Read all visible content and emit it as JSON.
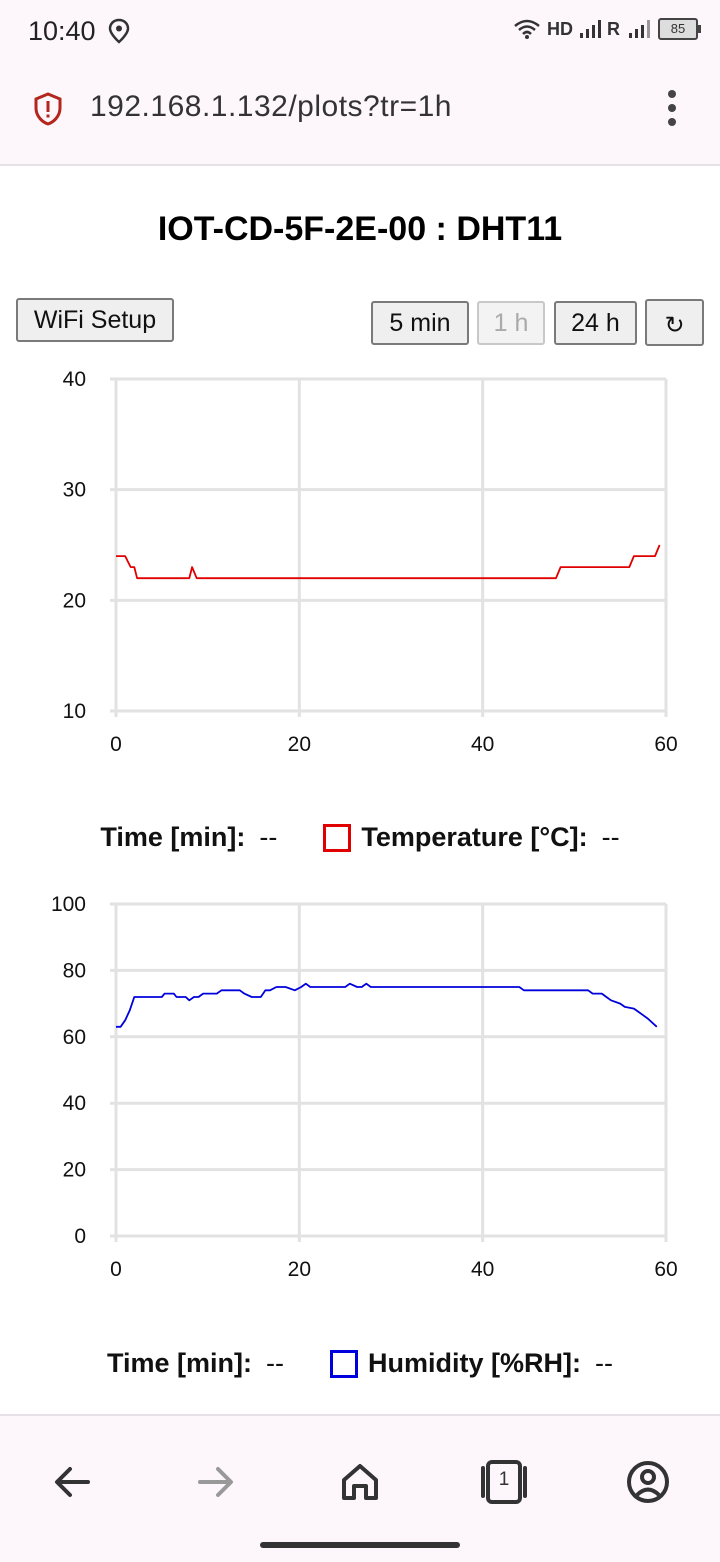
{
  "status_bar": {
    "time": "10:40",
    "network": "HD",
    "roaming": "R",
    "battery": "85"
  },
  "browser": {
    "url": "192.168.1.132/plots?tr=1h",
    "tab_count": "1"
  },
  "page": {
    "title": "IOT-CD-5F-2E-00 : DHT11",
    "wifi_button": "WiFi Setup",
    "range_buttons": [
      {
        "label": "5 min",
        "active": true
      },
      {
        "label": "1 h",
        "active": false
      },
      {
        "label": "24 h",
        "active": true
      }
    ],
    "refresh_glyph": "↻"
  },
  "legends": {
    "temperature": {
      "time_label": "Time [min]:",
      "time_value": "--",
      "series_label": "Temperature [°C]:",
      "series_value": "--",
      "color": "#e00000"
    },
    "humidity": {
      "time_label": "Time [min]:",
      "time_value": "--",
      "series_label": "Humidity [%RH]:",
      "series_value": "--",
      "color": "#0000dd"
    }
  },
  "chart_data": [
    {
      "type": "line",
      "x_ticks": [
        "0",
        "20",
        "40",
        "60"
      ],
      "y_ticks": [
        "10",
        "20",
        "30",
        "40"
      ],
      "xlim": [
        0,
        60
      ],
      "ylim": [
        10,
        40
      ],
      "grid": true,
      "series": [
        {
          "name": "Temperature [°C]",
          "color": "#e00000",
          "x": [
            0,
            1,
            1.3,
            1.6,
            2,
            2.3,
            8,
            8.3,
            8.8,
            9.3,
            48,
            48.5,
            56,
            56.5,
            58.8,
            59.3
          ],
          "y": [
            24,
            24,
            23.5,
            23,
            23,
            22,
            22,
            23,
            22,
            22,
            22,
            23,
            23,
            24,
            24,
            25
          ]
        }
      ]
    },
    {
      "type": "line",
      "x_ticks": [
        "0",
        "20",
        "40",
        "60"
      ],
      "y_ticks": [
        "0",
        "20",
        "40",
        "60",
        "80",
        "100"
      ],
      "xlim": [
        0,
        60
      ],
      "ylim": [
        0,
        100
      ],
      "grid": true,
      "series": [
        {
          "name": "Humidity [%RH]",
          "color": "#0000dd",
          "x": [
            0,
            0.5,
            1,
            1.5,
            2,
            5,
            5.3,
            6.3,
            6.6,
            7.6,
            8,
            8.5,
            9,
            9.5,
            10,
            11,
            11.5,
            13.5,
            14,
            14.8,
            15.3,
            15.8,
            16.3,
            16.8,
            17.5,
            18.5,
            19.5,
            20.2,
            20.7,
            21.2,
            25,
            25.5,
            26.3,
            26.8,
            27.3,
            27.8,
            44,
            44.5,
            51.5,
            52,
            53,
            53.5,
            54,
            55,
            55.5,
            56.5,
            57,
            57.5,
            58,
            59
          ],
          "y": [
            63,
            63,
            65,
            68,
            72,
            72,
            73,
            73,
            72,
            72,
            71,
            72,
            72,
            73,
            73,
            73,
            74,
            74,
            73,
            72,
            72,
            72,
            74,
            74,
            75,
            75,
            74,
            75,
            76,
            75,
            75,
            76,
            75,
            75,
            76,
            75,
            75,
            74,
            74,
            73,
            73,
            72,
            71,
            70,
            69,
            68.5,
            67.5,
            66.5,
            65.5,
            63
          ]
        }
      ]
    }
  ]
}
